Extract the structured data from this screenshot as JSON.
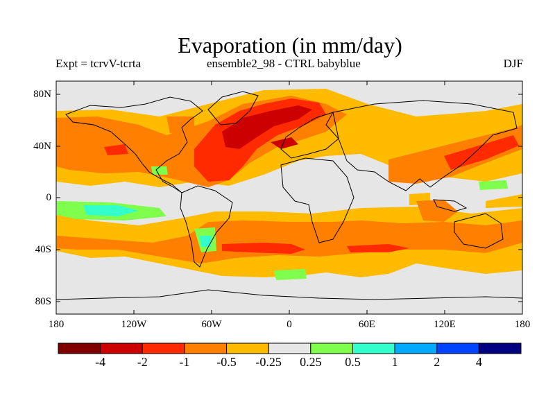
{
  "title": "Evaporation (in mm/day)",
  "subtitle_left": "Expt = tcrvV-tcrta",
  "subtitle_center": "ensemble2_98 - CTRL babyblue",
  "subtitle_right": "DJF",
  "lat_ticks": [
    "80N",
    "40N",
    "0",
    "40S",
    "80S"
  ],
  "lon_ticks": [
    "180",
    "120W",
    "60W",
    "0",
    "60E",
    "120E",
    "180"
  ],
  "colorbar": {
    "colors": [
      "#800000",
      "#cc0000",
      "#ff2a00",
      "#ff7f00",
      "#ffbb00",
      "#e6e6e6",
      "#7fff4c",
      "#33ffcc",
      "#00aaff",
      "#0044ff",
      "#000080"
    ],
    "labels": [
      "-4",
      "-2",
      "-1",
      "-0.5",
      "-0.25",
      "0.25",
      "0.5",
      "1",
      "2",
      "4"
    ]
  },
  "colors": {
    "background_field": "#e6e6e6",
    "coastline": "#000000"
  }
}
